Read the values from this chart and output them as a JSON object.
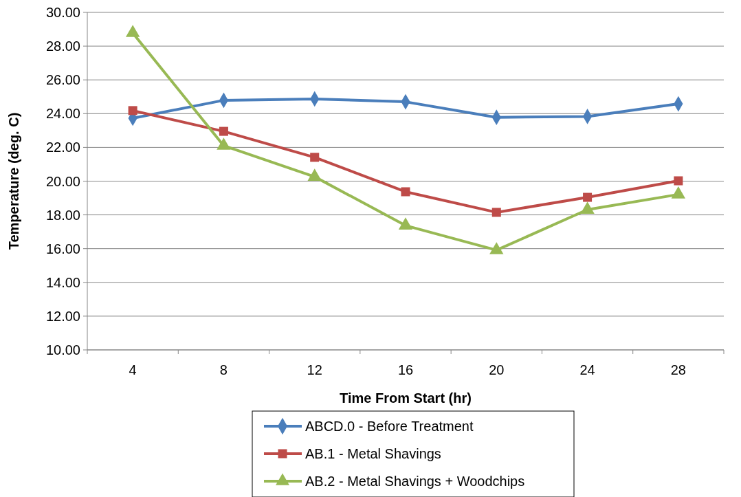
{
  "chart_data": {
    "type": "line",
    "xlabel": "Time From Start (hr)",
    "ylabel": "Temperature (deg. C)",
    "categories": [
      "4",
      "8",
      "12",
      "16",
      "20",
      "24",
      "28"
    ],
    "ylim": [
      10,
      30
    ],
    "yticks": [
      {
        "value": 10,
        "label": "10.00"
      },
      {
        "value": 12,
        "label": "12.00"
      },
      {
        "value": 14,
        "label": "14.00"
      },
      {
        "value": 16,
        "label": "16.00"
      },
      {
        "value": 18,
        "label": "18.00"
      },
      {
        "value": 20,
        "label": "20.00"
      },
      {
        "value": 22,
        "label": "22.00"
      },
      {
        "value": 24,
        "label": "24.00"
      },
      {
        "value": 26,
        "label": "26.00"
      },
      {
        "value": 28,
        "label": "28.00"
      },
      {
        "value": 30,
        "label": "30.00"
      }
    ],
    "grid": "y",
    "legend": "bottom",
    "line_style": "solid",
    "series": [
      {
        "name": "ABCD.0 - Before Treatment",
        "color": "#4a7ebb",
        "marker": "diamond",
        "values": [
          23.73,
          24.79,
          24.87,
          24.7,
          23.78,
          23.83,
          24.58
        ]
      },
      {
        "name": "AB.1 - Metal Shavings",
        "color": "#be4b48",
        "marker": "square",
        "values": [
          24.18,
          22.95,
          21.41,
          19.37,
          18.15,
          19.04,
          20.02
        ]
      },
      {
        "name": "AB.2 - Metal Shavings + Woodchips",
        "color": "#98b954",
        "marker": "triangle",
        "values": [
          28.78,
          22.1,
          20.26,
          17.37,
          15.91,
          18.31,
          19.21
        ]
      }
    ]
  }
}
